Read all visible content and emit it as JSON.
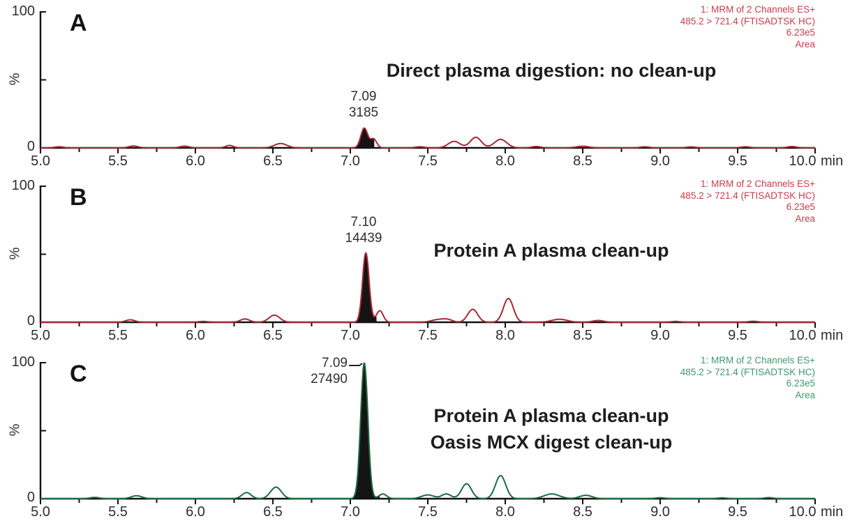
{
  "axis": {
    "x_labels": [
      "5.0",
      "5.5",
      "6.0",
      "6.5",
      "7.0",
      "7.5",
      "8.0",
      "8.5",
      "9.0",
      "9.5",
      "10.0"
    ],
    "x_unit": "min",
    "x_range": [
      5.0,
      10.0
    ],
    "x_tick_minor": 0.25,
    "x_tick_major": 0.5,
    "y_top_label": "100",
    "y_bottom_label": "0",
    "y_axis_label": "%",
    "y_range": [
      0,
      100
    ]
  },
  "chart_data": [
    {
      "panel": "A",
      "type": "line",
      "title_lines": [
        "Direct plasma digestion: no clean-up",
        ""
      ],
      "peak_annotation": {
        "time": "7.09",
        "area": "3185"
      },
      "channel_info": [
        "1: MRM of 2 Channels ES+",
        "485.2 > 721.4 (FTISADTSK HC)",
        "6.23e5",
        "Area"
      ],
      "colors": {
        "trace": "#a82834",
        "annotation": "#cd3a4c",
        "fill": "#141414"
      },
      "x_range": [
        5.0,
        10.0
      ],
      "y_range": [
        0,
        100
      ],
      "main_peak": {
        "rt": 7.09,
        "area": 3185,
        "height_pct": 14.5
      },
      "peaks": [
        [
          5.12,
          0.8,
          0.03
        ],
        [
          5.6,
          1.4,
          0.03
        ],
        [
          5.93,
          1.3,
          0.03
        ],
        [
          6.22,
          1.8,
          0.025
        ],
        [
          6.55,
          3.2,
          0.04
        ],
        [
          7.09,
          14.5,
          0.022
        ],
        [
          7.15,
          6.5,
          0.02
        ],
        [
          7.45,
          0.8,
          0.03
        ],
        [
          7.67,
          4.8,
          0.038
        ],
        [
          7.81,
          7.8,
          0.035
        ],
        [
          7.97,
          6.2,
          0.04
        ],
        [
          8.2,
          1.0,
          0.03
        ],
        [
          8.5,
          1.2,
          0.04
        ],
        [
          8.9,
          0.8,
          0.03
        ],
        [
          9.2,
          0.7,
          0.03
        ],
        [
          9.55,
          0.8,
          0.03
        ],
        [
          9.85,
          1.0,
          0.03
        ]
      ],
      "integration_fill_range": [
        7.025,
        7.155
      ],
      "leader_line": false
    },
    {
      "panel": "B",
      "type": "line",
      "title_lines": [
        "Protein A plasma clean-up",
        ""
      ],
      "peak_annotation": {
        "time": "7.10",
        "area": "14439"
      },
      "channel_info": [
        "1: MRM of 2 Channels ES+",
        "485.2 > 721.4 (FTISADTSK HC)",
        "6.23e5",
        "Area"
      ],
      "colors": {
        "trace": "#a82834",
        "annotation": "#cd3a4c",
        "fill": "#141414"
      },
      "x_range": [
        5.0,
        10.0
      ],
      "y_range": [
        0,
        100
      ],
      "main_peak": {
        "rt": 7.1,
        "area": 14439,
        "height_pct": 51
      },
      "peaks": [
        [
          5.58,
          1.8,
          0.03
        ],
        [
          6.05,
          0.6,
          0.03
        ],
        [
          6.32,
          2.4,
          0.03
        ],
        [
          6.51,
          5.2,
          0.035
        ],
        [
          7.1,
          51,
          0.021
        ],
        [
          7.19,
          8.5,
          0.022
        ],
        [
          7.57,
          2.0,
          0.045
        ],
        [
          7.63,
          1.5,
          0.03
        ],
        [
          7.79,
          9.5,
          0.032
        ],
        [
          8.02,
          17.5,
          0.032
        ],
        [
          8.35,
          2.2,
          0.05
        ],
        [
          8.6,
          1.3,
          0.035
        ],
        [
          9.1,
          0.6,
          0.03
        ],
        [
          9.6,
          0.7,
          0.03
        ]
      ],
      "integration_fill_range": [
        7.03,
        7.17
      ],
      "leader_line": false
    },
    {
      "panel": "C",
      "type": "line",
      "title_lines": [
        "Protein A plasma clean-up",
        "Oasis MCX digest clean-up"
      ],
      "peak_annotation": {
        "time": "7.09",
        "area": "27490"
      },
      "channel_info": [
        "1: MRM of 2 Channels ES+",
        "485.2 > 721.4 (FTISADTSK HC)",
        "6.23e5",
        "Area"
      ],
      "colors": {
        "trace": "#1d6b3e",
        "annotation": "#3e9a6c",
        "fill": "#141414"
      },
      "x_range": [
        5.0,
        10.0
      ],
      "y_range": [
        0,
        100
      ],
      "main_peak": {
        "rt": 7.09,
        "area": 27490,
        "height_pct": 100
      },
      "peaks": [
        [
          5.35,
          1.0,
          0.03
        ],
        [
          5.62,
          2.2,
          0.035
        ],
        [
          6.33,
          4.5,
          0.03
        ],
        [
          6.52,
          8.5,
          0.035
        ],
        [
          7.09,
          100,
          0.023
        ],
        [
          7.21,
          3.5,
          0.025
        ],
        [
          7.5,
          2.8,
          0.04
        ],
        [
          7.62,
          3.5,
          0.03
        ],
        [
          7.75,
          11,
          0.032
        ],
        [
          7.97,
          17,
          0.033
        ],
        [
          8.3,
          3.5,
          0.05
        ],
        [
          8.52,
          2.5,
          0.04
        ],
        [
          9.0,
          0.7,
          0.03
        ],
        [
          9.4,
          0.6,
          0.03
        ],
        [
          9.7,
          0.8,
          0.03
        ]
      ],
      "integration_fill_range": [
        7.0,
        7.19
      ],
      "leader_line": true
    }
  ]
}
